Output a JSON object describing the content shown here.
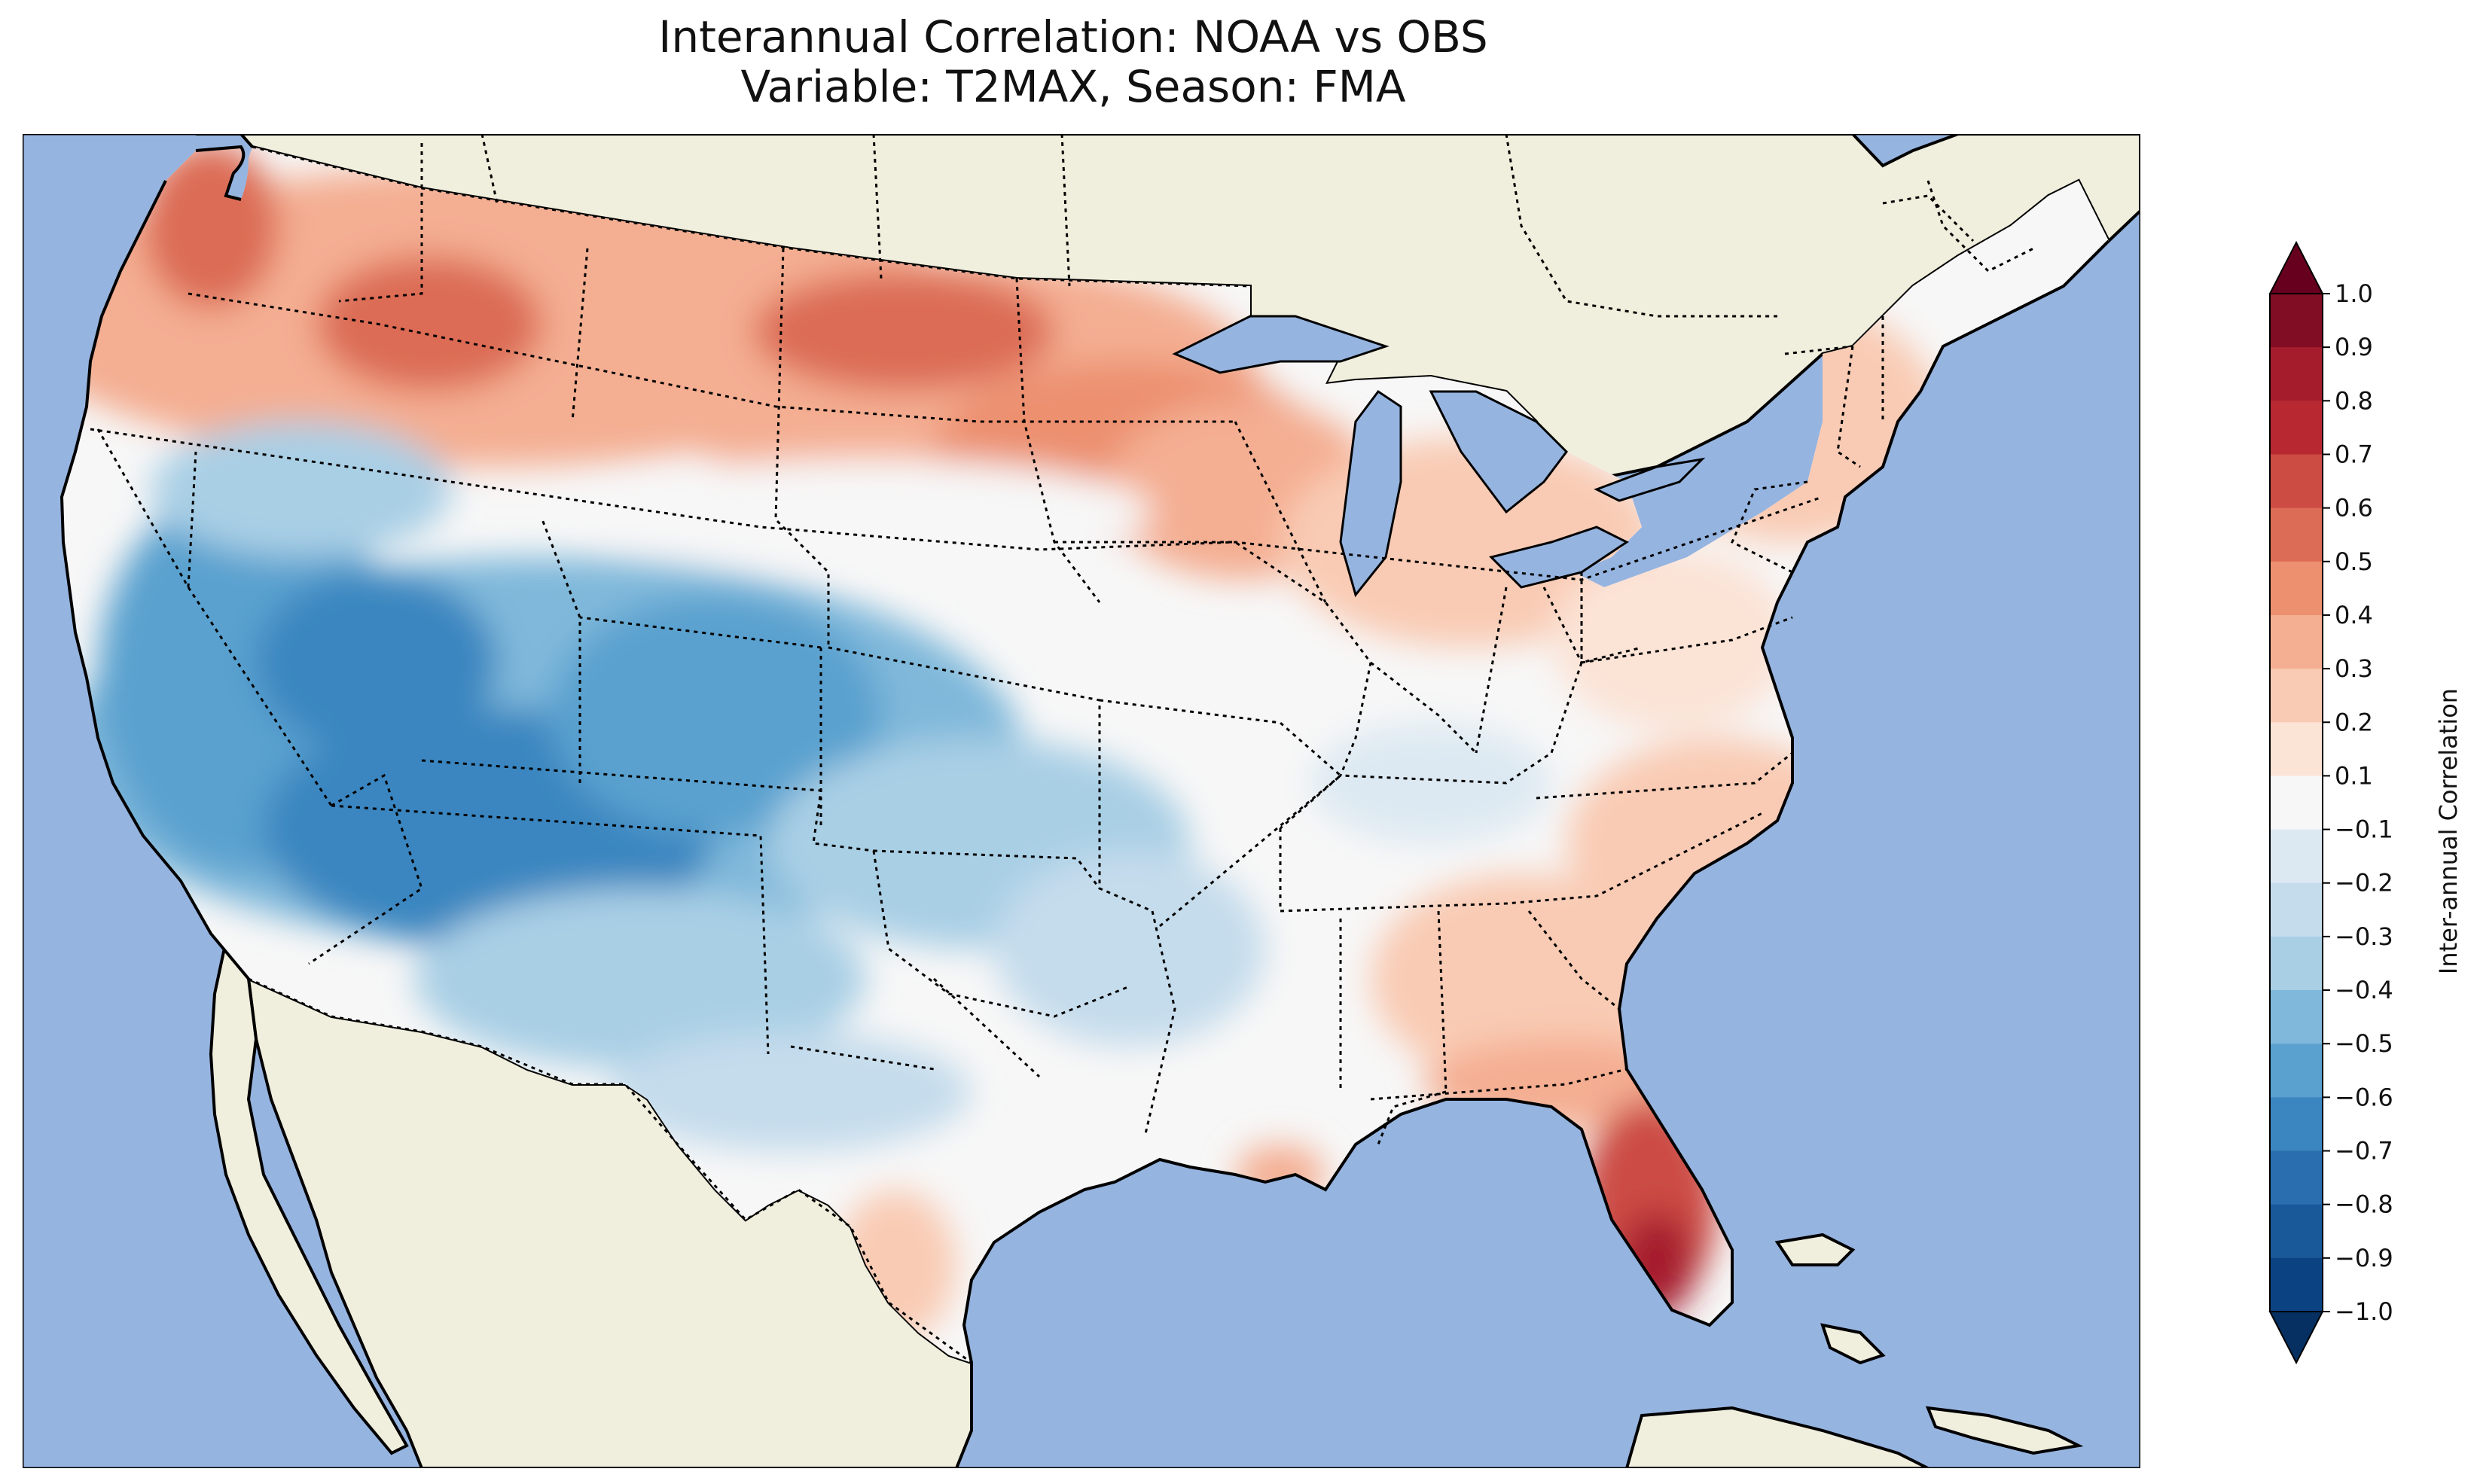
{
  "title": {
    "line1": "Interannual Correlation: NOAA vs OBS",
    "line2": "Variable: T2MAX, Season: FMA"
  },
  "colorbar": {
    "label": "Inter-annual Correlation",
    "ticks": [
      "1.0",
      "0.9",
      "0.8",
      "0.7",
      "0.6",
      "0.5",
      "0.4",
      "0.3",
      "0.2",
      "0.1",
      "−0.1",
      "−0.2",
      "−0.3",
      "−0.4",
      "−0.5",
      "−0.6",
      "−0.7",
      "−0.8",
      "−0.9",
      "−1.0"
    ],
    "colors": [
      "#67001f",
      "#800d23",
      "#a51d2d",
      "#b82830",
      "#cc4c44",
      "#dc6c55",
      "#ec9070",
      "#f4ae92",
      "#f9cbb4",
      "#fbe3d6",
      "#f7f7f7",
      "#dde9f2",
      "#c5dcec",
      "#a9cfe5",
      "#7fb8da",
      "#5aa1cf",
      "#3b86c0",
      "#2a6eb0",
      "#195899",
      "#0b4382",
      "#053061"
    ]
  },
  "map": {
    "ocean_color": "#96b4e0",
    "land_color": "#f0eedc",
    "extent": "Contiguous United States"
  }
}
